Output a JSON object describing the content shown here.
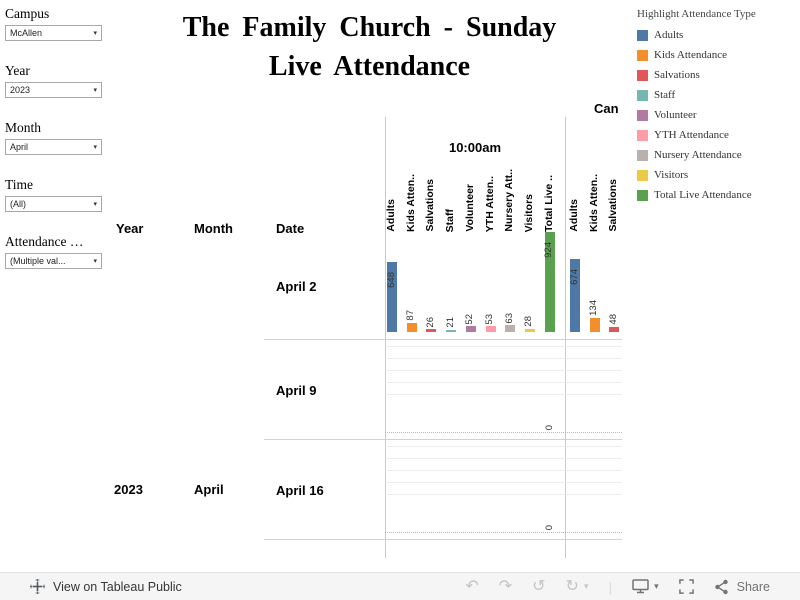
{
  "title": {
    "line1": "The Family Church - Sunday",
    "line2": "Live Attendance"
  },
  "filters": [
    {
      "label": "Campus",
      "value": "McAllen"
    },
    {
      "label": "Year",
      "value": "2023"
    },
    {
      "label": "Month",
      "value": "April"
    },
    {
      "label": "Time",
      "value": "(All)"
    },
    {
      "label": "Attendance …",
      "value": "(Multiple val..."
    }
  ],
  "legend": {
    "title": "Highlight Attendance Type",
    "items": [
      {
        "label": "Adults",
        "color": "#4e79a7"
      },
      {
        "label": "Kids Attendance",
        "color": "#f28e2b"
      },
      {
        "label": "Salvations",
        "color": "#e15759"
      },
      {
        "label": "Staff",
        "color": "#76b7b2"
      },
      {
        "label": "Volunteer",
        "color": "#b07aa1"
      },
      {
        "label": "YTH Attendance",
        "color": "#ff9da7"
      },
      {
        "label": "Nursery Attendance",
        "color": "#bab0ac"
      },
      {
        "label": "Visitors",
        "color": "#edc948"
      },
      {
        "label": "Total Live Attendance",
        "color": "#59a14f"
      }
    ]
  },
  "chart_data": {
    "type": "bar",
    "title": "The Family Church - Sunday Live Attendance",
    "row_axis_headers": [
      "Year",
      "Month",
      "Date"
    ],
    "year_label": "2023",
    "month_label": "April",
    "group_headers": [
      {
        "label": "10:00am"
      },
      {
        "label": "Can"
      }
    ],
    "value_axis_max": 924,
    "columns": [
      {
        "measure": "Adults",
        "group": 0,
        "color": "#4e79a7"
      },
      {
        "measure": "Kids Atten..",
        "group": 0,
        "color": "#f28e2b"
      },
      {
        "measure": "Salvations",
        "group": 0,
        "color": "#e15759"
      },
      {
        "measure": "Staff",
        "group": 0,
        "color": "#76b7b2"
      },
      {
        "measure": "Volunteer",
        "group": 0,
        "color": "#b07aa1"
      },
      {
        "measure": "YTH Atten..",
        "group": 0,
        "color": "#ff9da7"
      },
      {
        "measure": "Nursery Att..",
        "group": 0,
        "color": "#bab0ac"
      },
      {
        "measure": "Visitors",
        "group": 0,
        "color": "#edc948"
      },
      {
        "measure": "Total Live ..",
        "group": 0,
        "color": "#59a14f"
      },
      {
        "measure": "Adults",
        "group": 1,
        "color": "#4e79a7"
      },
      {
        "measure": "Kids Atten..",
        "group": 1,
        "color": "#f28e2b"
      },
      {
        "measure": "Salvations",
        "group": 1,
        "color": "#e15759"
      }
    ],
    "rows": [
      {
        "date": "April 2",
        "values": [
          648,
          87,
          26,
          21,
          52,
          53,
          63,
          28,
          924,
          674,
          134,
          48
        ]
      },
      {
        "date": "April 9",
        "values": [
          null,
          null,
          null,
          null,
          null,
          null,
          null,
          null,
          0,
          null,
          null,
          null
        ]
      },
      {
        "date": "April 16",
        "values": [
          null,
          null,
          null,
          null,
          null,
          null,
          null,
          null,
          0,
          null,
          null,
          null
        ]
      }
    ]
  },
  "footer": {
    "text": "View on Tableau Public",
    "share_label": "Share",
    "icons": {
      "undo": "↶",
      "redo": "↷",
      "revert": "↺",
      "refresh": "↻",
      "caret": "▾",
      "separator": "|"
    }
  }
}
